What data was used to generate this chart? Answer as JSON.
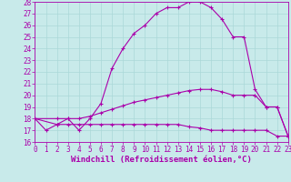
{
  "xlabel": "Windchill (Refroidissement éolien,°C)",
  "xlim": [
    0,
    23
  ],
  "ylim": [
    16,
    28
  ],
  "xticks": [
    0,
    1,
    2,
    3,
    4,
    5,
    6,
    7,
    8,
    9,
    10,
    11,
    12,
    13,
    14,
    15,
    16,
    17,
    18,
    19,
    20,
    21,
    22,
    23
  ],
  "yticks": [
    16,
    17,
    18,
    19,
    20,
    21,
    22,
    23,
    24,
    25,
    26,
    27,
    28
  ],
  "bg_color": "#c8eaea",
  "line_color": "#aa00aa",
  "grid_color": "#aad8d8",
  "line1_x": [
    0,
    1,
    2,
    3,
    4,
    5,
    6,
    7,
    8,
    9,
    10,
    11,
    12,
    13,
    14,
    15,
    16,
    17,
    18,
    19,
    20,
    21,
    22,
    23
  ],
  "line1_y": [
    18.0,
    17.0,
    17.5,
    18.0,
    17.0,
    18.0,
    19.3,
    22.3,
    24.0,
    25.3,
    26.0,
    27.0,
    27.5,
    27.5,
    28.0,
    28.0,
    27.5,
    26.5,
    25.0,
    25.0,
    20.5,
    19.0,
    19.0,
    16.5
  ],
  "line2_x": [
    0,
    2,
    3,
    4,
    5,
    6,
    7,
    8,
    9,
    10,
    11,
    12,
    13,
    14,
    15,
    16,
    17,
    18,
    19,
    20,
    21,
    22,
    23
  ],
  "line2_y": [
    18.0,
    18.0,
    18.0,
    18.0,
    18.2,
    18.5,
    18.8,
    19.1,
    19.4,
    19.6,
    19.8,
    20.0,
    20.2,
    20.4,
    20.5,
    20.5,
    20.3,
    20.0,
    20.0,
    20.0,
    19.0,
    19.0,
    16.5
  ],
  "line3_x": [
    0,
    2,
    3,
    4,
    5,
    6,
    7,
    8,
    9,
    10,
    11,
    12,
    13,
    14,
    15,
    16,
    17,
    18,
    19,
    20,
    21,
    22,
    23
  ],
  "line3_y": [
    18.0,
    17.5,
    17.5,
    17.5,
    17.5,
    17.5,
    17.5,
    17.5,
    17.5,
    17.5,
    17.5,
    17.5,
    17.5,
    17.3,
    17.2,
    17.0,
    17.0,
    17.0,
    17.0,
    17.0,
    17.0,
    16.5,
    16.5
  ],
  "marker": "+",
  "markersize": 3,
  "linewidth": 0.8,
  "fontsize_ticks": 5.5,
  "fontsize_xlabel": 6.5
}
